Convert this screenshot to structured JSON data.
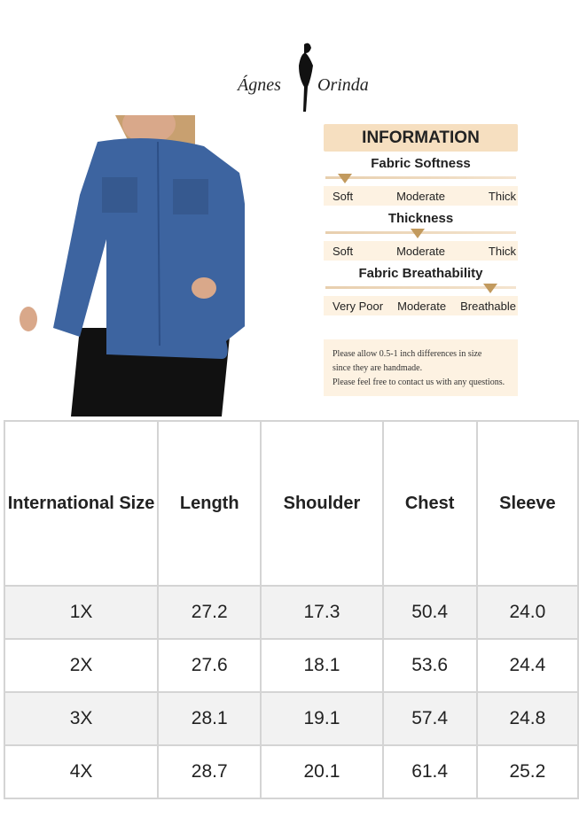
{
  "brand": {
    "left": "Ágnes",
    "right": "Orinda"
  },
  "info": {
    "title": "INFORMATION",
    "scales": [
      {
        "name": "Fabric Softness",
        "options": [
          "Soft",
          "Moderate",
          "Thick"
        ]
      },
      {
        "name": "Thickness",
        "options": [
          "Soft",
          "Moderate",
          "Thick"
        ]
      },
      {
        "name": "Fabric Breathability",
        "options": [
          "Very Poor",
          "Moderate",
          "Breathable"
        ]
      }
    ],
    "note": [
      "Please allow 0.5-1 inch differences in size",
      "since they are handmade.",
      "Please feel free to contact us with any questions."
    ]
  },
  "table": {
    "header": [
      "International Size",
      "Length",
      "Shoulder",
      "Chest",
      "Sleeve"
    ],
    "rows": [
      [
        "1X",
        "27.2",
        "17.3",
        "50.4",
        "24.0"
      ],
      [
        "2X",
        "27.6",
        "18.1",
        "53.6",
        "24.4"
      ],
      [
        "3X",
        "28.1",
        "19.1",
        "57.4",
        "24.8"
      ],
      [
        "4X",
        "28.7",
        "20.1",
        "61.4",
        "25.2"
      ]
    ]
  }
}
